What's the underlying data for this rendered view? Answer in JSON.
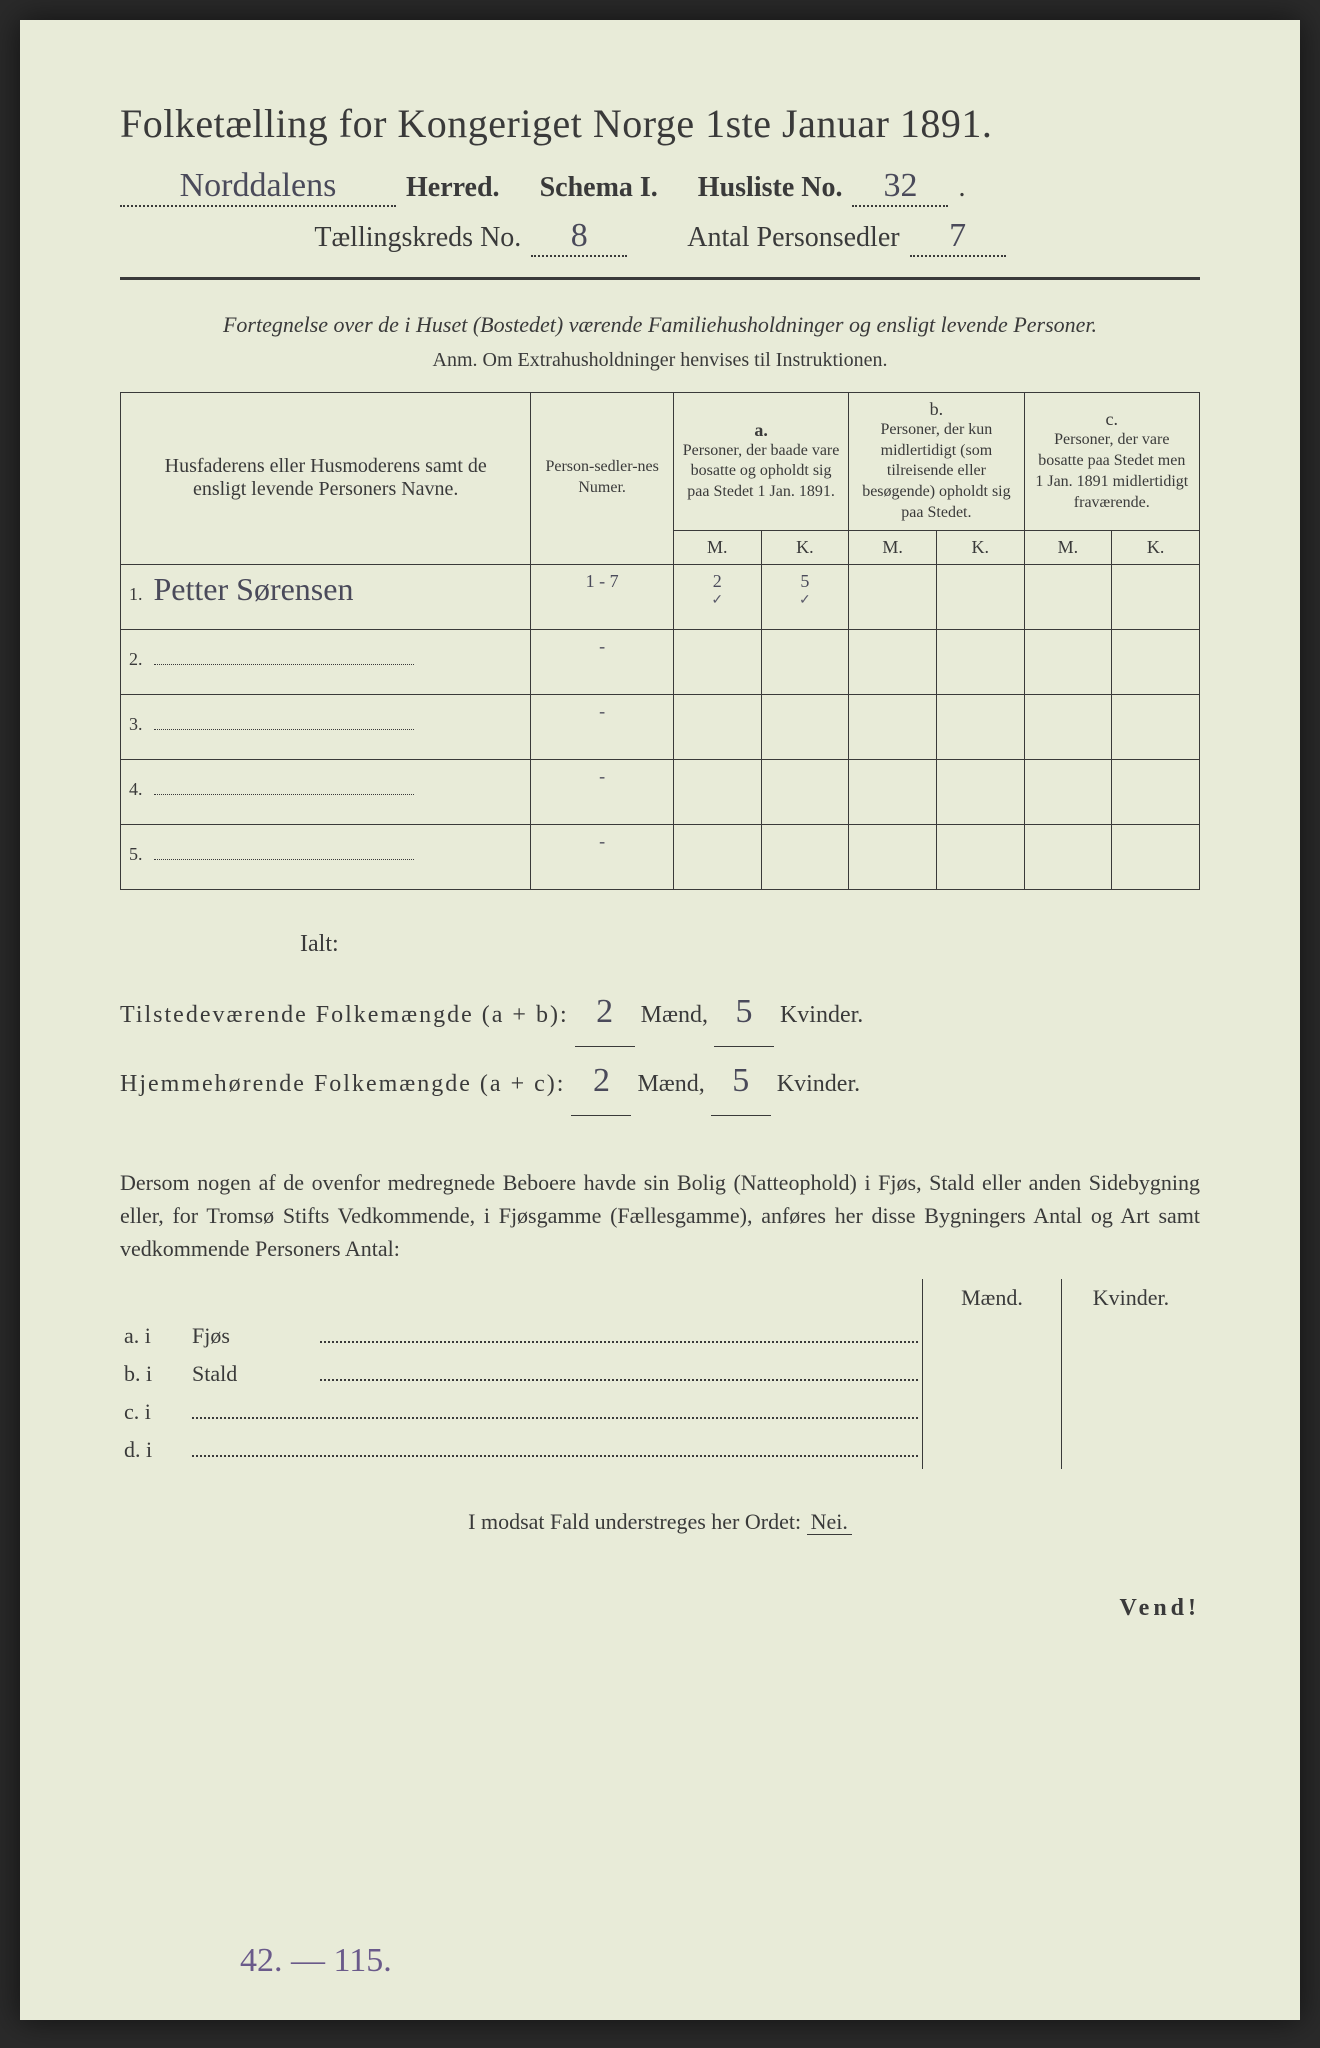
{
  "title": "Folketælling for Kongeriget Norge 1ste Januar 1891.",
  "header": {
    "herred_hand": "Norddalens",
    "herred_label": "Herred.",
    "schema_label": "Schema I.",
    "husliste_label": "Husliste No.",
    "husliste_no": "32",
    "kreds_label": "Tællingskreds No.",
    "kreds_no": "8",
    "sedler_label": "Antal Personsedler",
    "sedler_no": "7"
  },
  "note_italic": "Fortegnelse over de i Huset (Bostedet) værende Familiehusholdninger og ensligt levende Personer.",
  "anm": "Anm.  Om Extrahusholdninger henvises til Instruktionen.",
  "table": {
    "head_name": "Husfaderens eller Husmoderens samt de ensligt levende Personers Navne.",
    "head_num": "Person-sedler-nes Numer.",
    "col_a_label": "a.",
    "col_a_text": "Personer, der baade vare bosatte og opholdt sig paa Stedet 1 Jan. 1891.",
    "col_b_label": "b.",
    "col_b_text": "Personer, der kun midlertidigt (som tilreisende eller besøgende) opholdt sig paa Stedet.",
    "col_c_label": "c.",
    "col_c_text": "Personer, der vare bosatte paa Stedet men 1 Jan. 1891 midlertidigt fraværende.",
    "M": "M.",
    "K": "K.",
    "rows": [
      {
        "n": "1.",
        "name": "Petter Sørensen",
        "num": "1 - 7",
        "aM": "2",
        "aK": "5",
        "bM": "",
        "bK": "",
        "cM": "",
        "cK": ""
      },
      {
        "n": "2.",
        "name": "",
        "num": "-",
        "aM": "",
        "aK": "",
        "bM": "",
        "bK": "",
        "cM": "",
        "cK": ""
      },
      {
        "n": "3.",
        "name": "",
        "num": "-",
        "aM": "",
        "aK": "",
        "bM": "",
        "bK": "",
        "cM": "",
        "cK": ""
      },
      {
        "n": "4.",
        "name": "",
        "num": "-",
        "aM": "",
        "aK": "",
        "bM": "",
        "bK": "",
        "cM": "",
        "cK": ""
      },
      {
        "n": "5.",
        "name": "",
        "num": "-",
        "aM": "",
        "aK": "",
        "bM": "",
        "bK": "",
        "cM": "",
        "cK": ""
      }
    ]
  },
  "totals": {
    "ialt": "Ialt:",
    "line1_label": "Tilstedeværende Folkemængde (a + b):",
    "line1_m": "2",
    "line1_k": "5",
    "line2_label": "Hjemmehørende Folkemængde (a + c):",
    "line2_m": "2",
    "line2_k": "5",
    "maend": "Mænd,",
    "kvinder": "Kvinder."
  },
  "para": "Dersom nogen af de ovenfor medregnede Beboere havde sin Bolig (Natteophold) i Fjøs, Stald eller anden Sidebygning eller, for Tromsø Stifts Vedkommende, i Fjøsgamme (Fællesgamme), anføres her disse Bygningers Antal og Art samt vedkommende Personers Antal:",
  "sub": {
    "maend": "Mænd.",
    "kvinder": "Kvinder.",
    "a": "a.  i",
    "a_label": "Fjøs",
    "b": "b.  i",
    "b_label": "Stald",
    "c": "c.  i",
    "d": "d.  i"
  },
  "nei": "I modsat Fald understreges her Ordet:",
  "nei_word": "Nei.",
  "vend": "Vend!",
  "footnote": "42. — 115."
}
